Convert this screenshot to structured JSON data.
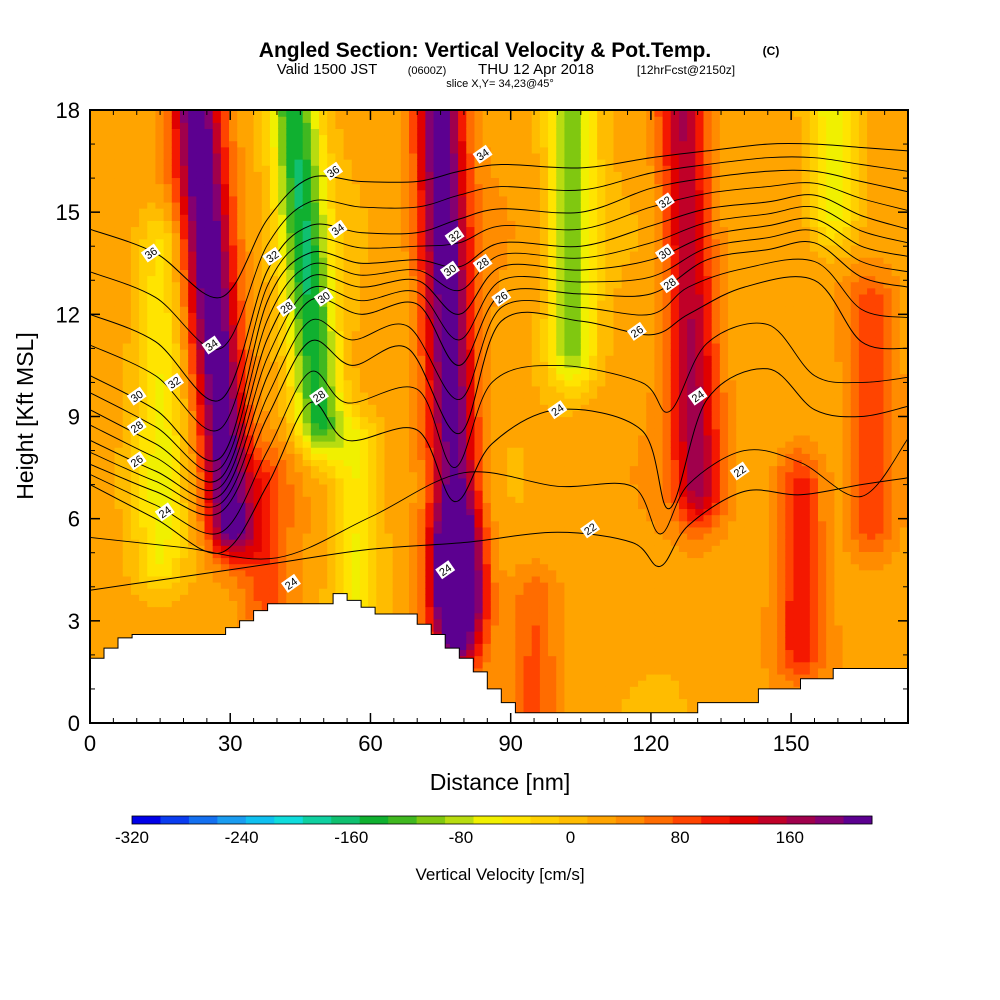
{
  "header": {
    "title": "Angled Section: Vertical Velocity & Pot.Temp.",
    "title_unit": "(C)",
    "valid_prefix": "Valid 1500 JST",
    "valid_utc": "(0600Z)",
    "valid_date": "THU 12 Apr 2018",
    "forecast": "[12hrFcst@2150z]",
    "slice": "slice X,Y= 34,23@45°"
  },
  "chart_data": {
    "type": "heatmap",
    "xlabel": "Distance [nm]",
    "ylabel": "Height [Kft MSL]",
    "xlim": [
      0,
      175
    ],
    "ylim": [
      0,
      18
    ],
    "x_ticks": [
      0,
      30,
      60,
      90,
      120,
      150
    ],
    "y_ticks": [
      0,
      3,
      6,
      9,
      12,
      15,
      18
    ],
    "colorbar": {
      "label": "Vertical Velocity [cm/s]",
      "tick_labels": [
        "-320",
        "-240",
        "-160",
        "-80",
        "0",
        "80",
        "160"
      ],
      "tick_values": [
        -320,
        -240,
        -160,
        -80,
        0,
        80,
        160
      ],
      "range": [
        -320,
        220
      ],
      "colors": [
        "#0000e8",
        "#0a3cf0",
        "#1470f0",
        "#1a9cf0",
        "#10c0f0",
        "#10dcdc",
        "#10d0a0",
        "#10c070",
        "#10b030",
        "#40b820",
        "#80c810",
        "#b8dc10",
        "#f0f000",
        "#ffe400",
        "#ffd000",
        "#ffbc00",
        "#ffa400",
        "#ff8c00",
        "#ff6c00",
        "#ff4400",
        "#f41800",
        "#e00000",
        "#c00028",
        "#a0004c",
        "#840070",
        "#5c0090"
      ]
    },
    "velocity_features": [
      {
        "x": 30,
        "z_bottom": 6,
        "z_top": 18,
        "peak_cm_s": 210,
        "tilt": -0.1
      },
      {
        "x": 79,
        "z_bottom": 3.8,
        "z_top": 18,
        "peak_cm_s": 200,
        "tilt": -0.05
      },
      {
        "x": 130,
        "z_bottom": 7,
        "z_top": 18,
        "peak_cm_s": 140,
        "tilt": -0.05
      },
      {
        "x": 49,
        "z_bottom": 9,
        "z_top": 18,
        "peak_cm_s": -170,
        "tilt": -0.1
      },
      {
        "x": 103,
        "z_bottom": 11,
        "z_top": 18,
        "peak_cm_s": -120,
        "tilt": 0
      },
      {
        "x": 15,
        "z_bottom": 5,
        "z_top": 14,
        "peak_cm_s": -70,
        "tilt": 0
      },
      {
        "x": 57,
        "z_bottom": 4,
        "z_top": 8,
        "peak_cm_s": -80,
        "tilt": 0
      },
      {
        "x": 159,
        "z_bottom": 15,
        "z_top": 18,
        "peak_cm_s": -90,
        "tilt": 0
      },
      {
        "x": 152,
        "z_bottom": 2.5,
        "z_top": 7,
        "peak_cm_s": 90,
        "tilt": 0
      },
      {
        "x": 38,
        "z_bottom": 3.5,
        "z_top": 7,
        "peak_cm_s": 60,
        "tilt": 0
      },
      {
        "x": 78,
        "z_bottom": 2.5,
        "z_top": 5,
        "peak_cm_s": 160,
        "tilt": 0
      },
      {
        "x": 95,
        "z_bottom": 0.5,
        "z_top": 3.5,
        "peak_cm_s": 50,
        "tilt": 0
      },
      {
        "x": 167,
        "z_bottom": 6,
        "z_top": 12,
        "peak_cm_s": 70,
        "tilt": 0
      }
    ],
    "terrain": {
      "x": [
        0,
        3,
        3,
        6,
        6,
        9,
        9,
        29,
        29,
        32,
        32,
        35,
        35,
        38,
        38,
        52,
        52,
        55,
        55,
        58,
        58,
        61,
        61,
        70,
        70,
        73,
        73,
        76,
        76,
        79,
        79,
        82,
        82,
        85,
        85,
        88,
        88,
        91,
        91,
        118,
        118,
        130,
        130,
        143,
        143,
        152,
        152,
        159,
        159,
        166,
        166,
        175
      ],
      "z": [
        1.9,
        1.9,
        2.2,
        2.2,
        2.5,
        2.5,
        2.6,
        2.6,
        2.8,
        2.8,
        3.0,
        3.0,
        3.3,
        3.3,
        3.5,
        3.5,
        3.8,
        3.8,
        3.6,
        3.6,
        3.4,
        3.4,
        3.2,
        3.2,
        2.9,
        2.9,
        2.6,
        2.6,
        2.2,
        2.2,
        1.9,
        1.9,
        1.5,
        1.5,
        1.0,
        1.0,
        0.6,
        0.6,
        0.3,
        0.3,
        0.3,
        0.3,
        0.6,
        0.6,
        1.0,
        1.0,
        1.3,
        1.3,
        1.6,
        1.6,
        1.6,
        1.6
      ]
    },
    "isentropes": [
      {
        "label": "22",
        "points": [
          [
            0,
            3.9
          ],
          [
            20,
            4.3
          ],
          [
            40,
            4.7
          ],
          [
            60,
            5.1
          ],
          [
            80,
            5.3
          ],
          [
            100,
            5.6
          ],
          [
            116,
            5.3
          ],
          [
            122,
            4.6
          ],
          [
            128,
            5.8
          ],
          [
            140,
            6.8
          ],
          [
            152,
            6.7
          ],
          [
            165,
            7.0
          ],
          [
            175,
            7.2
          ]
        ],
        "label_x": 107
      },
      {
        "label": "24",
        "points": [
          [
            0,
            7.0
          ],
          [
            14,
            6.0
          ],
          [
            28,
            5.0
          ],
          [
            38,
            7.0
          ],
          [
            47,
            9.4
          ],
          [
            55,
            8.3
          ],
          [
            70,
            8.6
          ],
          [
            78,
            6.5
          ],
          [
            86,
            8.2
          ],
          [
            100,
            9.2
          ],
          [
            118,
            8.6
          ],
          [
            124,
            6.3
          ],
          [
            132,
            9.5
          ],
          [
            145,
            10.4
          ],
          [
            155,
            9.2
          ],
          [
            165,
            9.0
          ],
          [
            175,
            9.3
          ]
        ],
        "label_x": 120
      },
      {
        "label": "26",
        "points": [
          [
            0,
            7.6
          ],
          [
            14,
            6.8
          ],
          [
            28,
            6.2
          ],
          [
            38,
            9.0
          ],
          [
            47,
            11.2
          ],
          [
            56,
            10.5
          ],
          [
            68,
            11.0
          ],
          [
            79,
            8.5
          ],
          [
            88,
            11.8
          ],
          [
            105,
            11.8
          ],
          [
            120,
            11.4
          ],
          [
            128,
            12.0
          ],
          [
            140,
            12.8
          ],
          [
            155,
            13.0
          ],
          [
            165,
            11.2
          ],
          [
            175,
            11.0
          ]
        ],
        "label_x": 116
      },
      {
        "label": "28",
        "points": [
          [
            0,
            8.3
          ],
          [
            14,
            7.4
          ],
          [
            28,
            6.7
          ],
          [
            38,
            10.2
          ],
          [
            47,
            12.4
          ],
          [
            58,
            12.0
          ],
          [
            70,
            12.3
          ],
          [
            79,
            10.5
          ],
          [
            88,
            12.6
          ],
          [
            105,
            12.6
          ],
          [
            120,
            12.6
          ],
          [
            132,
            13.6
          ],
          [
            145,
            13.9
          ],
          [
            155,
            14.1
          ],
          [
            165,
            13.1
          ],
          [
            175,
            12.8
          ]
        ],
        "label_x": 128
      },
      {
        "label": "30",
        "points": [
          [
            0,
            9.2
          ],
          [
            14,
            8.2
          ],
          [
            28,
            7.2
          ],
          [
            38,
            11.3
          ],
          [
            47,
            13.1
          ],
          [
            58,
            12.8
          ],
          [
            70,
            13.0
          ],
          [
            79,
            12.0
          ],
          [
            88,
            13.4
          ],
          [
            105,
            13.3
          ],
          [
            120,
            13.6
          ],
          [
            132,
            14.3
          ],
          [
            145,
            14.6
          ],
          [
            155,
            14.8
          ],
          [
            165,
            14.0
          ],
          [
            175,
            13.7
          ]
        ],
        "label_x": 123
      },
      {
        "label": "32",
        "points": [
          [
            0,
            10.2
          ],
          [
            14,
            9.2
          ],
          [
            28,
            7.8
          ],
          [
            38,
            12.4
          ],
          [
            47,
            13.8
          ],
          [
            58,
            13.5
          ],
          [
            70,
            13.6
          ],
          [
            79,
            13.4
          ],
          [
            88,
            14.1
          ],
          [
            105,
            14.0
          ],
          [
            120,
            14.6
          ],
          [
            132,
            15.1
          ],
          [
            145,
            15.3
          ],
          [
            155,
            15.5
          ],
          [
            165,
            14.9
          ],
          [
            175,
            14.5
          ]
        ],
        "label_x": 123
      },
      {
        "label": "34",
        "points": [
          [
            0,
            12.0
          ],
          [
            14,
            11.2
          ],
          [
            28,
            9.5
          ],
          [
            38,
            13.3
          ],
          [
            47,
            14.6
          ],
          [
            58,
            14.4
          ],
          [
            70,
            14.4
          ],
          [
            79,
            14.8
          ],
          [
            88,
            15.1
          ],
          [
            105,
            15.0
          ],
          [
            120,
            15.7
          ],
          [
            132,
            16.0
          ],
          [
            145,
            16.2
          ],
          [
            155,
            16.2
          ],
          [
            165,
            15.9
          ],
          [
            175,
            15.6
          ]
        ],
        "label_x": 84
      },
      {
        "label": "36",
        "points": [
          [
            0,
            14.5
          ],
          [
            14,
            13.8
          ],
          [
            28,
            12.5
          ],
          [
            38,
            14.8
          ],
          [
            47,
            16.0
          ],
          [
            58,
            15.9
          ],
          [
            70,
            15.9
          ],
          [
            79,
            16.2
          ],
          [
            88,
            16.4
          ],
          [
            105,
            16.3
          ],
          [
            120,
            16.6
          ],
          [
            132,
            16.8
          ],
          [
            145,
            17.0
          ],
          [
            155,
            17.0
          ],
          [
            165,
            16.9
          ],
          [
            175,
            16.8
          ]
        ],
        "label_x": 49
      }
    ],
    "contour_labels": [
      {
        "text": "36",
        "x": 13,
        "z": 13.8
      },
      {
        "text": "36",
        "x": 52,
        "z": 16.2
      },
      {
        "text": "34",
        "x": 53,
        "z": 14.5
      },
      {
        "text": "34",
        "x": 84,
        "z": 16.7
      },
      {
        "text": "34",
        "x": 26,
        "z": 11.1
      },
      {
        "text": "32",
        "x": 18,
        "z": 10.0
      },
      {
        "text": "32",
        "x": 39,
        "z": 13.7
      },
      {
        "text": "32",
        "x": 78,
        "z": 14.3
      },
      {
        "text": "32",
        "x": 123,
        "z": 15.3
      },
      {
        "text": "30",
        "x": 10,
        "z": 9.6
      },
      {
        "text": "30",
        "x": 50,
        "z": 12.5
      },
      {
        "text": "30",
        "x": 77,
        "z": 13.3
      },
      {
        "text": "30",
        "x": 123,
        "z": 13.8
      },
      {
        "text": "28",
        "x": 10,
        "z": 8.7
      },
      {
        "text": "28",
        "x": 42,
        "z": 12.2
      },
      {
        "text": "28",
        "x": 84,
        "z": 13.5
      },
      {
        "text": "28",
        "x": 124,
        "z": 12.9
      },
      {
        "text": "28",
        "x": 49,
        "z": 9.6
      },
      {
        "text": "26",
        "x": 10,
        "z": 7.7
      },
      {
        "text": "26",
        "x": 88,
        "z": 12.5
      },
      {
        "text": "26",
        "x": 117,
        "z": 11.5
      },
      {
        "text": "24",
        "x": 16,
        "z": 6.2
      },
      {
        "text": "24",
        "x": 43,
        "z": 4.1
      },
      {
        "text": "24",
        "x": 76,
        "z": 4.5
      },
      {
        "text": "24",
        "x": 100,
        "z": 9.2
      },
      {
        "text": "24",
        "x": 130,
        "z": 9.6
      },
      {
        "text": "22",
        "x": 107,
        "z": 5.7
      },
      {
        "text": "22",
        "x": 139,
        "z": 7.4
      }
    ]
  }
}
